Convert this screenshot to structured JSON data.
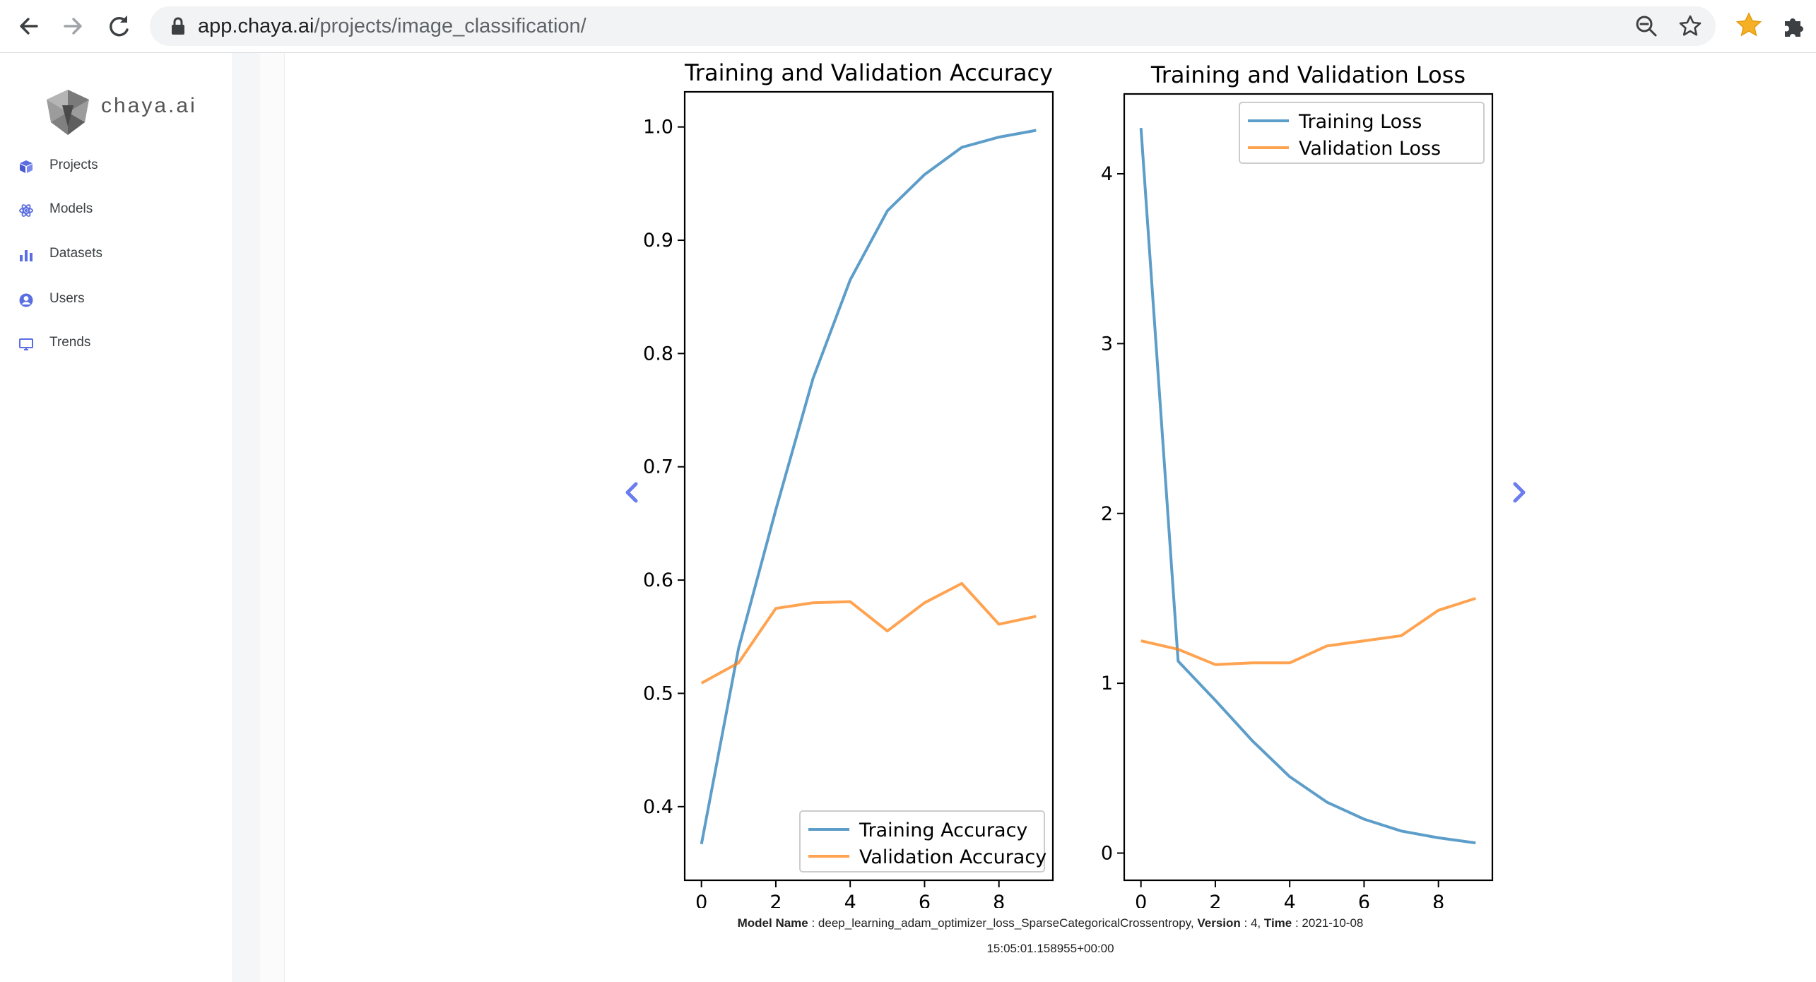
{
  "browser": {
    "url_host": "app.chaya.ai",
    "url_path": "/projects/image_classification/",
    "icons": [
      "back-arrow-icon",
      "forward-arrow-icon",
      "reload-icon",
      "lock-icon",
      "zoom-out-icon",
      "bookmark-star-icon",
      "extension-star-icon",
      "puzzle-extensions-icon"
    ]
  },
  "sidebar": {
    "logo_text": "chaya.ai",
    "items": [
      {
        "label": "Projects",
        "icon": "cube-icon"
      },
      {
        "label": "Models",
        "icon": "atom-icon"
      },
      {
        "label": "Datasets",
        "icon": "bar-chart-icon"
      },
      {
        "label": "Users",
        "icon": "user-circle-icon"
      },
      {
        "label": "Trends",
        "icon": "monitor-icon"
      }
    ]
  },
  "colors": {
    "accent": "#5b6ee1",
    "training": "#1f77b4",
    "validation": "#ff7f0e"
  },
  "chart_data": [
    {
      "type": "line",
      "title": "Training and Validation Accuracy",
      "x": [
        0,
        1,
        2,
        3,
        4,
        5,
        6,
        7,
        8,
        9
      ],
      "xticks": [
        0,
        2,
        4,
        6,
        8
      ],
      "yticks": [
        0.4,
        0.5,
        0.6,
        0.7,
        0.8,
        0.9,
        1.0
      ],
      "ytick_labels": [
        "0.4",
        "0.5",
        "0.6",
        "0.7",
        "0.8",
        "0.9",
        "1.0"
      ],
      "xlim": [
        -0.45,
        9.45
      ],
      "ylim": [
        0.335,
        1.031
      ],
      "legend_position": "lower-right",
      "series": [
        {
          "name": "Training Accuracy",
          "color": "#1f77b4",
          "values": [
            0.367,
            0.54,
            0.662,
            0.778,
            0.865,
            0.926,
            0.958,
            0.982,
            0.991,
            0.997
          ]
        },
        {
          "name": "Validation Accuracy",
          "color": "#ff7f0e",
          "values": [
            0.509,
            0.527,
            0.575,
            0.58,
            0.581,
            0.555,
            0.58,
            0.597,
            0.561,
            0.568
          ]
        }
      ]
    },
    {
      "type": "line",
      "title": "Training and Validation Loss",
      "x": [
        0,
        1,
        2,
        3,
        4,
        5,
        6,
        7,
        8,
        9
      ],
      "xticks": [
        0,
        2,
        4,
        6,
        8
      ],
      "yticks": [
        0,
        1,
        2,
        3,
        4
      ],
      "ytick_labels": [
        "0",
        "1",
        "2",
        "3",
        "4"
      ],
      "xlim": [
        -0.45,
        9.45
      ],
      "ylim": [
        -0.16,
        4.47
      ],
      "legend_position": "upper-right",
      "series": [
        {
          "name": "Training Loss",
          "color": "#1f77b4",
          "values": [
            4.27,
            1.13,
            0.9,
            0.66,
            0.45,
            0.3,
            0.2,
            0.13,
            0.09,
            0.06
          ]
        },
        {
          "name": "Validation Loss",
          "color": "#ff7f0e",
          "values": [
            1.25,
            1.2,
            1.11,
            1.12,
            1.12,
            1.22,
            1.25,
            1.28,
            1.43,
            1.5
          ]
        }
      ]
    }
  ],
  "caption": {
    "model_label": "Model Name",
    "model_value": "deep_learning_adam_optimizer_loss_SparseCategoricalCrossentropy",
    "version_label": "Version",
    "version_value": "4",
    "time_label": "Time",
    "time_value": "2021-10-08",
    "time_value_line2": "15:05:01.158955+00:00"
  }
}
